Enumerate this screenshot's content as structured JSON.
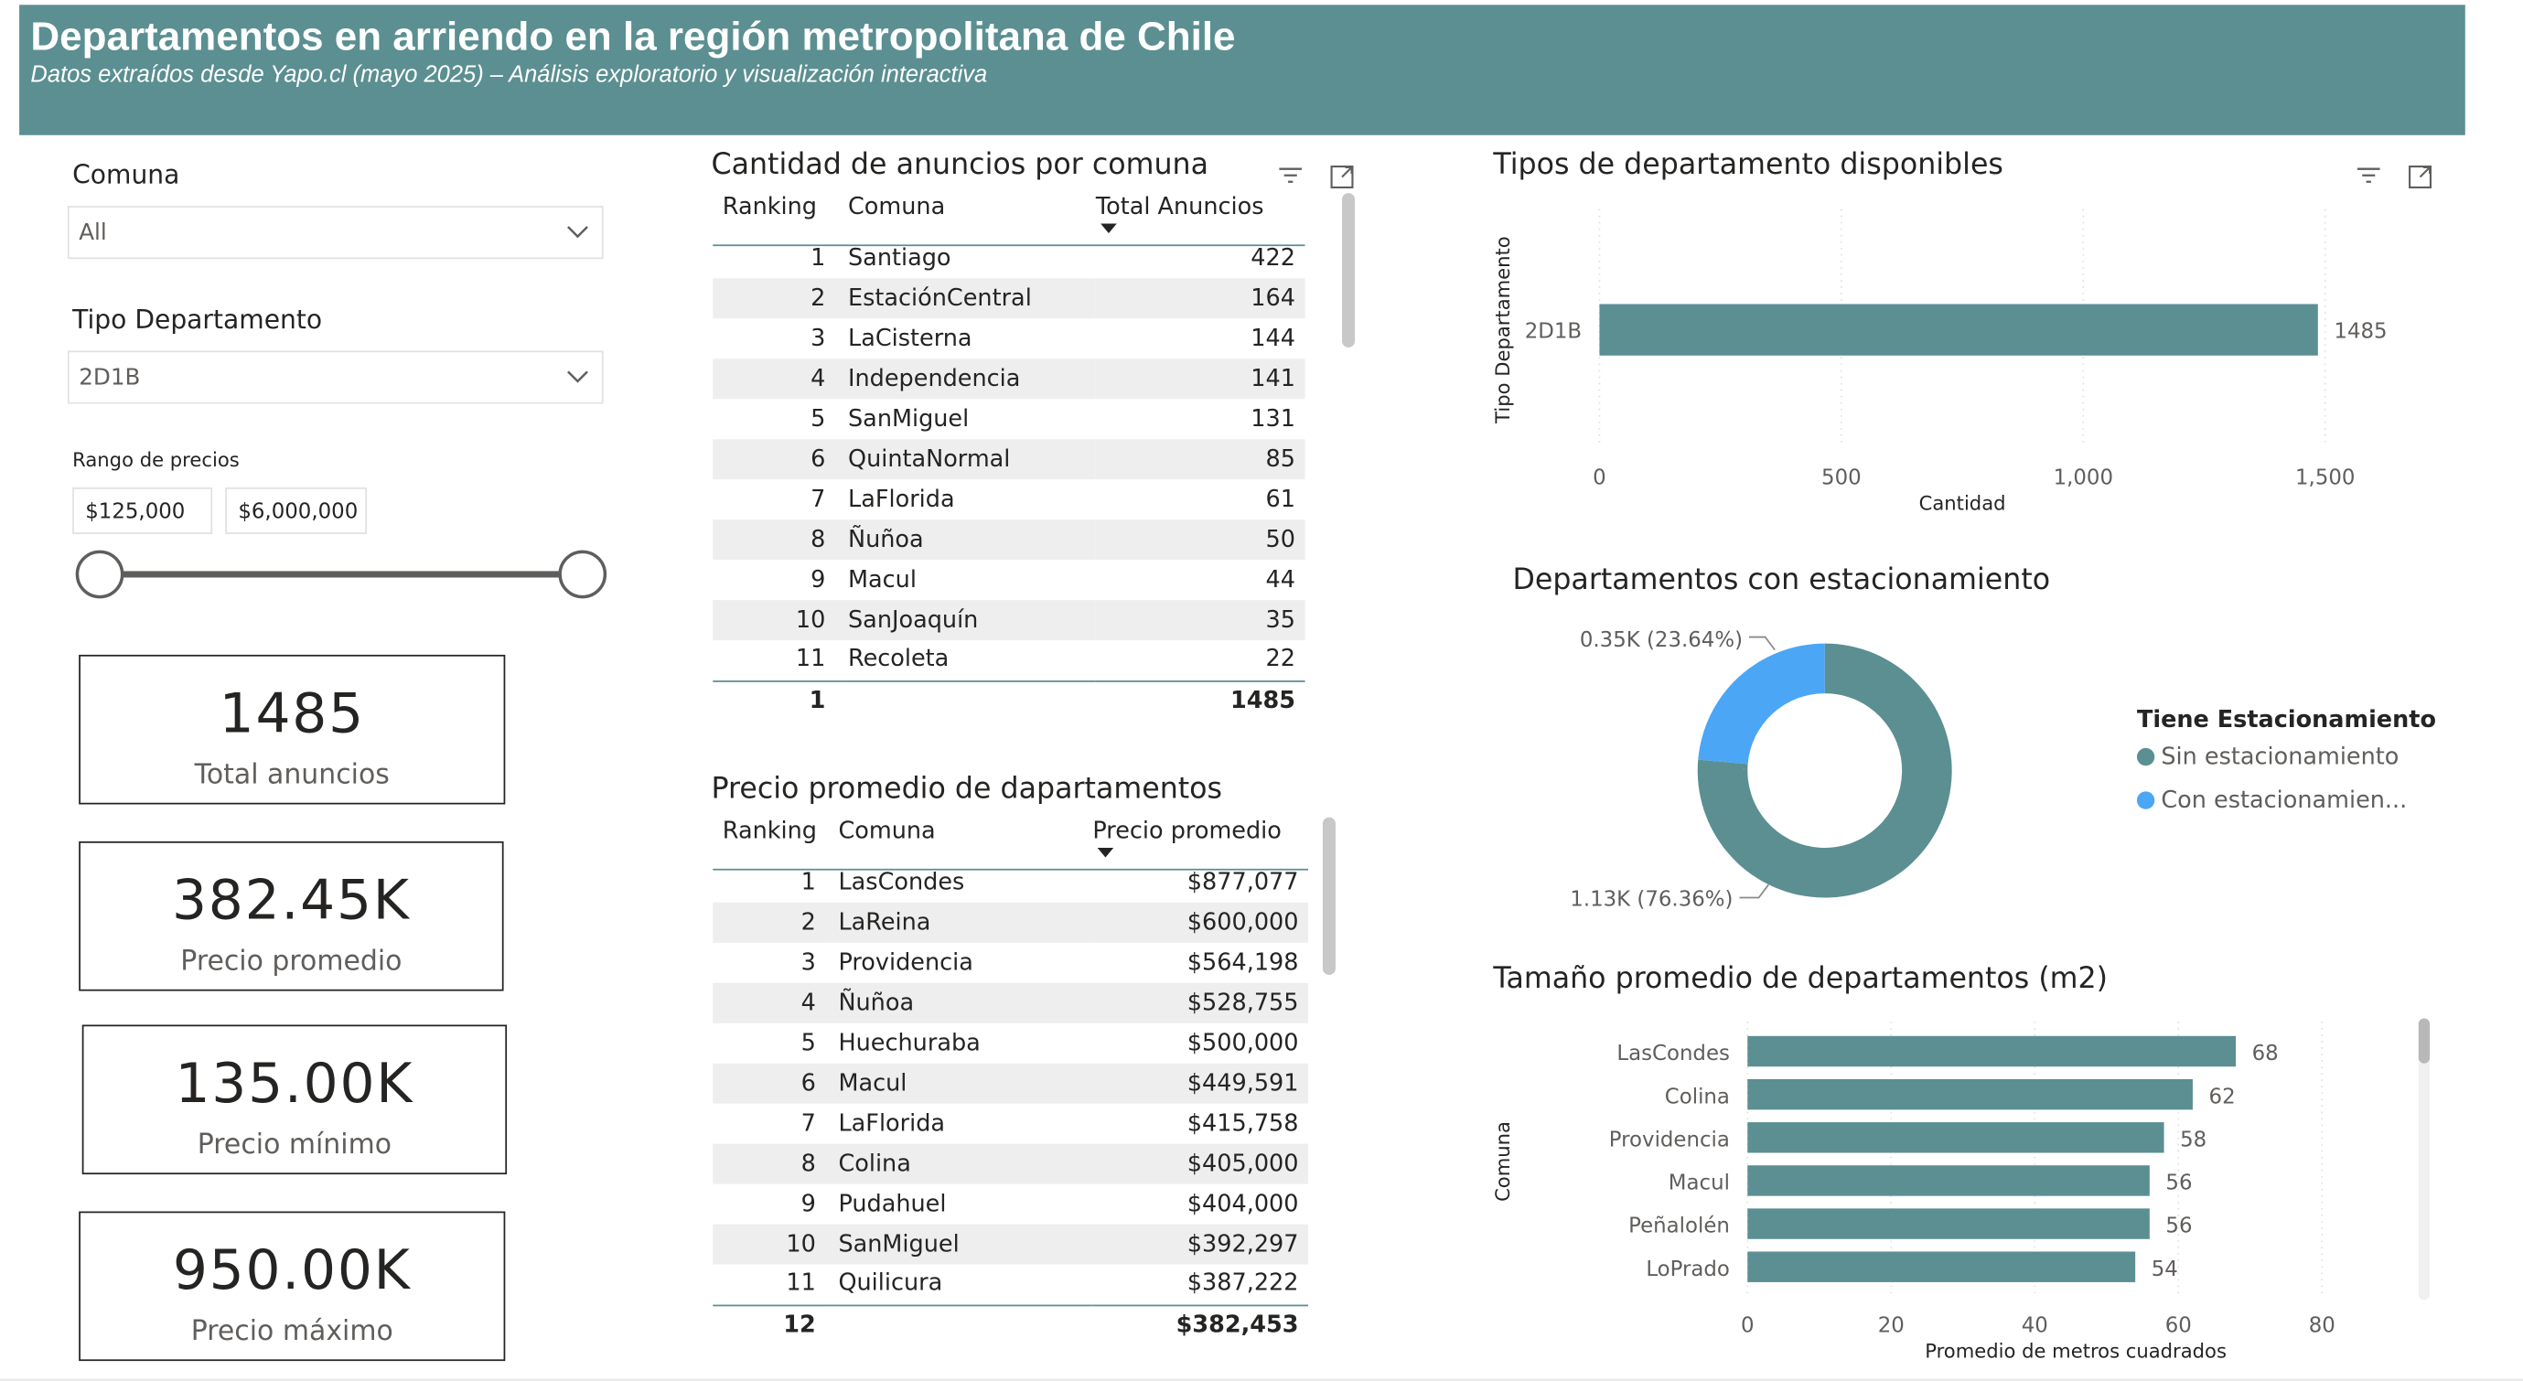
{
  "header": {
    "title": "Departamentos en arriendo en la región metropolitana de Chile",
    "subtitle": "Datos extraídos desde Yapo.cl (mayo 2025) – Análisis exploratorio y visualización interactiva",
    "color": "#5b8f92"
  },
  "filters": {
    "comuna_label": "Comuna",
    "comuna_value": "All",
    "tipo_label": "Tipo Departamento",
    "tipo_value": "2D1B",
    "rango_label": "Rango de precios",
    "rango_min": "$125,000",
    "rango_max": "$6,000,000",
    "slider_min_fraction": 0,
    "slider_max_fraction": 1
  },
  "cards": [
    {
      "value": "1485",
      "caption": "Total anuncios"
    },
    {
      "value": "382.45K",
      "caption": "Precio promedio"
    },
    {
      "value": "135.00K",
      "caption": "Precio mínimo"
    },
    {
      "value": "950.00K",
      "caption": "Precio máximo"
    }
  ],
  "anuncios_table": {
    "title": "Cantidad de anuncios por comuna",
    "columns": [
      "Ranking",
      "Comuna",
      "Total Anuncios"
    ],
    "rows": [
      [
        "1",
        "Santiago",
        "422"
      ],
      [
        "2",
        "EstaciónCentral",
        "164"
      ],
      [
        "3",
        "LaCisterna",
        "144"
      ],
      [
        "4",
        "Independencia",
        "141"
      ],
      [
        "5",
        "SanMiguel",
        "131"
      ],
      [
        "6",
        "QuintaNormal",
        "85"
      ],
      [
        "7",
        "LaFlorida",
        "61"
      ],
      [
        "8",
        "Ñuñoa",
        "50"
      ],
      [
        "9",
        "Macul",
        "44"
      ],
      [
        "10",
        "SanJoaquín",
        "35"
      ],
      [
        "11",
        "Recoleta",
        "22"
      ]
    ],
    "total": [
      "1",
      "",
      "1485"
    ]
  },
  "precio_table": {
    "title": "Precio promedio de dapartamentos",
    "columns": [
      "Ranking",
      "Comuna",
      "Precio promedio"
    ],
    "rows": [
      [
        "1",
        "LasCondes",
        "$877,077"
      ],
      [
        "2",
        "LaReina",
        "$600,000"
      ],
      [
        "3",
        "Providencia",
        "$564,198"
      ],
      [
        "4",
        "Ñuñoa",
        "$528,755"
      ],
      [
        "5",
        "Huechuraba",
        "$500,000"
      ],
      [
        "6",
        "Macul",
        "$449,591"
      ],
      [
        "7",
        "LaFlorida",
        "$415,758"
      ],
      [
        "8",
        "Colina",
        "$405,000"
      ],
      [
        "9",
        "Pudahuel",
        "$404,000"
      ],
      [
        "10",
        "SanMiguel",
        "$392,297"
      ],
      [
        "11",
        "Quilicura",
        "$387,222"
      ]
    ],
    "total": [
      "12",
      "",
      "$382,453"
    ]
  },
  "chart_data": [
    {
      "type": "bar",
      "orientation": "horizontal",
      "title": "Tipos de departamento disponibles",
      "categories": [
        "2D1B"
      ],
      "values": [
        1485
      ],
      "data_labels": [
        "1485"
      ],
      "xlabel": "Cantidad",
      "ylabel": "Tipo Departamento",
      "xlim": [
        0,
        1500
      ],
      "xticks": [
        "0",
        "500",
        "1,000",
        "1,500"
      ],
      "xtick_values": [
        0,
        500,
        1000,
        1500
      ],
      "grid": true,
      "color": "#5b8f92"
    },
    {
      "type": "pie",
      "variant": "donut",
      "title": "Departamentos con estacionamiento",
      "legend_title": "Tiene Estacionamiento",
      "legend_position": "right",
      "slices": [
        {
          "name": "Sin estacionamiento",
          "legend_label": "Sin estacionamiento",
          "value": 1134,
          "percent": 76.36,
          "label": "1.13K (76.36%)",
          "color": "#5b8f92"
        },
        {
          "name": "Con estacionamiento",
          "legend_label": "Con estacionamien...",
          "value": 351,
          "percent": 23.64,
          "label": "0.35K (23.64%)",
          "color": "#4ba6f5"
        }
      ]
    },
    {
      "type": "bar",
      "orientation": "horizontal",
      "title": "Tamaño promedio de departamentos (m2)",
      "categories": [
        "LasCondes",
        "Colina",
        "Providencia",
        "Macul",
        "Peñalolén",
        "LoPrado"
      ],
      "values": [
        68,
        62,
        58,
        56,
        56,
        54
      ],
      "data_labels": [
        "68",
        "62",
        "58",
        "56",
        "56",
        "54"
      ],
      "xlabel": "Promedio de metros cuadrados",
      "ylabel": "Comuna",
      "xlim": [
        0,
        80
      ],
      "xticks": [
        "0",
        "20",
        "40",
        "60",
        "80"
      ],
      "xtick_values": [
        0,
        20,
        40,
        60,
        80
      ],
      "grid": true,
      "color": "#5b8f92"
    }
  ]
}
